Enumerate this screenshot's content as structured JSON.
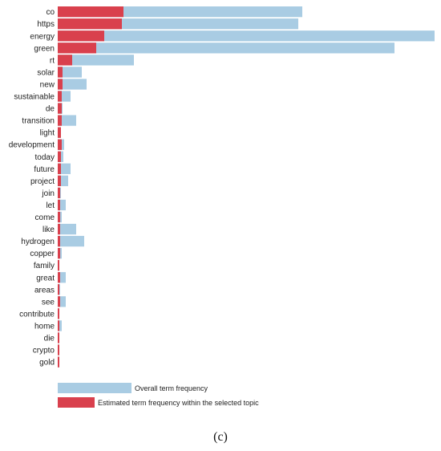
{
  "chart_data": {
    "type": "bar",
    "orientation": "horizontal",
    "categories": [
      "co",
      "https",
      "energy",
      "green",
      "rt",
      "solar",
      "new",
      "sustainable",
      "de",
      "transition",
      "light",
      "development",
      "today",
      "future",
      "project",
      "join",
      "let",
      "come",
      "like",
      "hydrogen",
      "copper",
      "family",
      "great",
      "areas",
      "see",
      "contribute",
      "home",
      "die",
      "crypto",
      "gold"
    ],
    "series": [
      {
        "name": "Overall term frequency",
        "values": [
          305,
          300,
          470,
          420,
          95,
          30,
          36,
          16,
          6,
          23,
          4,
          8,
          7,
          16,
          13,
          4,
          10,
          5,
          23,
          33,
          5,
          2,
          10,
          3,
          10,
          2,
          5,
          2,
          2,
          2
        ]
      },
      {
        "name": "Estimated term frequency within the selected topic",
        "values": [
          82,
          80,
          58,
          48,
          18,
          6,
          6,
          5,
          5,
          5,
          4,
          5,
          4,
          4,
          4,
          3,
          3,
          3,
          3,
          3,
          3,
          2,
          3,
          2,
          3,
          2,
          2,
          2,
          2,
          2
        ]
      }
    ],
    "xlim": [
      0,
      470
    ],
    "grid": false,
    "legend_position": "bottom-left",
    "colors": {
      "overall": "#a9cce3",
      "topic": "#d9404d"
    }
  },
  "caption": "(c)"
}
